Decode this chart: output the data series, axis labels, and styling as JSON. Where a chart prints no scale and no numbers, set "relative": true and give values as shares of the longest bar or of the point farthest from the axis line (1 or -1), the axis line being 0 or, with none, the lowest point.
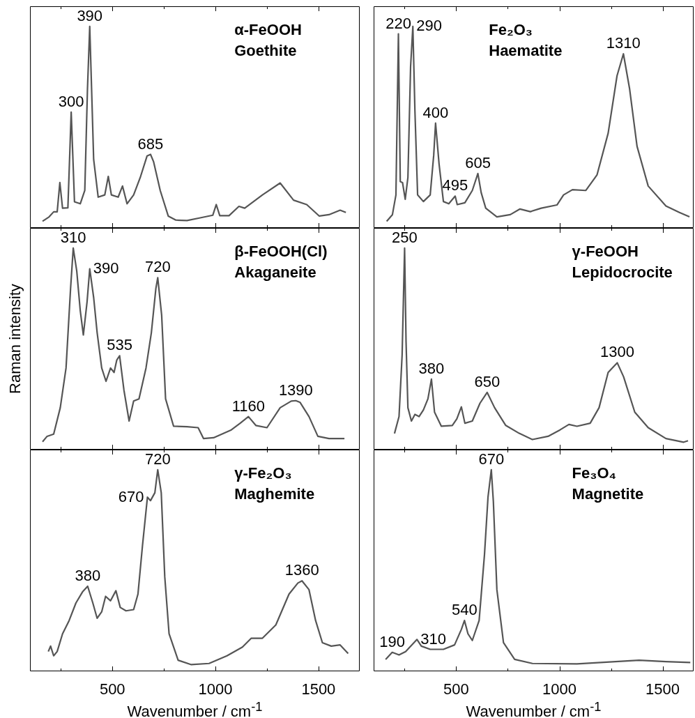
{
  "chart_data": [
    {
      "type": "line",
      "relative": true,
      "title": "α-FeOOH",
      "subtitle": "Goethite",
      "color": "#555555",
      "marker": "none",
      "xlim": [
        100,
        1700
      ],
      "xticks": [
        {
          "value": 250,
          "label": null
        },
        500,
        {
          "value": 750,
          "label": null
        },
        1000,
        {
          "value": 1250,
          "label": null
        },
        1500
      ],
      "tick_labels": false,
      "x": [
        161,
        193,
        215,
        232,
        245,
        258,
        284,
        300,
        316,
        344,
        366,
        379,
        390,
        399,
        409,
        431,
        463,
        480,
        495,
        528,
        549,
        571,
        603,
        635,
        668,
        685,
        700,
        732,
        771,
        808,
        862,
        926,
        987,
        1004,
        1021,
        1066,
        1114,
        1142,
        1228,
        1314,
        1379,
        1443,
        1504,
        1551,
        1605,
        1633
      ],
      "values": [
        0.033,
        0.055,
        0.08,
        0.08,
        0.225,
        0.098,
        0.1,
        0.575,
        0.13,
        0.12,
        0.186,
        0.69,
        1,
        0.69,
        0.34,
        0.153,
        0.164,
        0.256,
        0.164,
        0.153,
        0.208,
        0.12,
        0.164,
        0.25,
        0.357,
        0.365,
        0.328,
        0.186,
        0.059,
        0.039,
        0.037,
        0.05,
        0.063,
        0.116,
        0.061,
        0.061,
        0.107,
        0.098,
        0.164,
        0.223,
        0.138,
        0.116,
        0.059,
        0.066,
        0.088,
        0.077
      ],
      "annotations": [
        {
          "text": "300",
          "x": 300,
          "y": 0.575
        },
        {
          "text": "390",
          "x": 390,
          "y": 1
        },
        {
          "text": "685",
          "x": 685,
          "y": 0.365
        }
      ]
    },
    {
      "type": "line",
      "relative": true,
      "title": "Fe₂O₃",
      "subtitle": "Haematite",
      "color": "#555555",
      "marker": "none",
      "xlim": [
        100,
        1650
      ],
      "xticks": [
        {
          "value": 250,
          "label": null
        },
        500,
        {
          "value": 750,
          "label": null
        },
        1000,
        {
          "value": 1250,
          "label": null
        },
        1500
      ],
      "tick_labels": false,
      "x": [
        163,
        191,
        208,
        220,
        229,
        240,
        253,
        266,
        279,
        290,
        300,
        313,
        341,
        374,
        391,
        400,
        417,
        438,
        464,
        495,
        505,
        542,
        578,
        605,
        621,
        643,
        697,
        762,
        809,
        859,
        912,
        988,
        1020,
        1063,
        1128,
        1182,
        1236,
        1279,
        1310,
        1340,
        1376,
        1430,
        1516,
        1581,
        1630
      ],
      "values": [
        0.033,
        0.066,
        0.164,
        0.963,
        0.23,
        0.225,
        0.142,
        0.25,
        0.8,
        1,
        0.58,
        0.164,
        0.131,
        0.164,
        0.361,
        0.52,
        0.317,
        0.131,
        0.12,
        0.158,
        0.116,
        0.125,
        0.186,
        0.27,
        0.175,
        0.098,
        0.055,
        0.066,
        0.094,
        0.081,
        0.098,
        0.114,
        0.164,
        0.19,
        0.186,
        0.263,
        0.47,
        0.755,
        0.864,
        0.69,
        0.405,
        0.208,
        0.109,
        0.077,
        0.055
      ],
      "annotations": [
        {
          "text": "220",
          "x": 220,
          "y": 0.963
        },
        {
          "text": "290",
          "x": 290,
          "y": 1
        },
        {
          "text": "400",
          "x": 400,
          "y": 0.52
        },
        {
          "text": "495",
          "x": 495,
          "y": 0.158
        },
        {
          "text": "605",
          "x": 605,
          "y": 0.27
        },
        {
          "text": "1310",
          "x": 1310,
          "y": 0.864
        }
      ]
    },
    {
      "type": "line",
      "relative": true,
      "title": "β-FeOOH(Cl)",
      "subtitle": "Akaganeite",
      "ylabel": "Raman intensity",
      "color": "#555555",
      "marker": "none",
      "xlim": [
        100,
        1700
      ],
      "xticks": [
        {
          "value": 250,
          "label": null
        },
        500,
        {
          "value": 750,
          "label": null
        },
        1000,
        {
          "value": 1250,
          "label": null
        },
        1500
      ],
      "tick_labels": false,
      "x": [
        161,
        183,
        215,
        247,
        275,
        297,
        310,
        327,
        344,
        359,
        377,
        390,
        409,
        426,
        448,
        469,
        491,
        508,
        521,
        535,
        556,
        581,
        603,
        629,
        663,
        689,
        711,
        720,
        739,
        758,
        797,
        862,
        916,
        942,
        991,
        1077,
        1120,
        1160,
        1196,
        1250,
        1314,
        1368,
        1390,
        1411,
        1454,
        1497,
        1551,
        1626
      ],
      "values": [
        0.039,
        0.066,
        0.077,
        0.208,
        0.405,
        0.8,
        1,
        0.886,
        0.69,
        0.569,
        0.733,
        0.897,
        0.755,
        0.58,
        0.405,
        0.339,
        0.405,
        0.383,
        0.444,
        0.466,
        0.295,
        0.142,
        0.241,
        0.252,
        0.405,
        0.58,
        0.8,
        0.853,
        0.667,
        0.252,
        0.116,
        0.114,
        0.109,
        0.055,
        0.059,
        0.098,
        0.131,
        0.164,
        0.12,
        0.109,
        0.208,
        0.241,
        0.243,
        0.234,
        0.164,
        0.066,
        0.055,
        0.055
      ],
      "annotations": [
        {
          "text": "310",
          "x": 310,
          "y": 1
        },
        {
          "text": "390",
          "x": 390,
          "y": 0.897
        },
        {
          "text": "535",
          "x": 535,
          "y": 0.466
        },
        {
          "text": "720",
          "x": 720,
          "y": 0.853
        },
        {
          "text": "1160",
          "x": 1160,
          "y": 0.164
        },
        {
          "text": "1390",
          "x": 1390,
          "y": 0.243
        }
      ]
    },
    {
      "type": "line",
      "relative": true,
      "title": "γ-FeOOH",
      "subtitle": "Lepidocrocite",
      "color": "#555555",
      "marker": "none",
      "xlim": [
        100,
        1650
      ],
      "xticks": [
        {
          "value": 250,
          "label": null
        },
        500,
        {
          "value": 750,
          "label": null
        },
        1000,
        {
          "value": 1250,
          "label": null
        },
        1500
      ],
      "tick_labels": false,
      "x": [
        201,
        223,
        238,
        250,
        257,
        266,
        283,
        300,
        320,
        341,
        363,
        380,
        395,
        428,
        481,
        503,
        525,
        542,
        578,
        615,
        650,
        686,
        740,
        805,
        869,
        945,
        1003,
        1046,
        1085,
        1149,
        1192,
        1236,
        1280,
        1311,
        1365,
        1430,
        1516,
        1602,
        1623
      ],
      "values": [
        0.08,
        0.164,
        0.47,
        1,
        0.536,
        0.208,
        0.142,
        0.175,
        0.164,
        0.197,
        0.252,
        0.35,
        0.186,
        0.116,
        0.12,
        0.153,
        0.212,
        0.131,
        0.142,
        0.23,
        0.284,
        0.208,
        0.12,
        0.081,
        0.05,
        0.066,
        0.098,
        0.125,
        0.116,
        0.131,
        0.208,
        0.383,
        0.431,
        0.361,
        0.186,
        0.109,
        0.055,
        0.037,
        0.044
      ],
      "annotations": [
        {
          "text": "250",
          "x": 250,
          "y": 1
        },
        {
          "text": "380",
          "x": 380,
          "y": 0.35
        },
        {
          "text": "650",
          "x": 650,
          "y": 0.284
        },
        {
          "text": "1300",
          "x": 1280,
          "y": 0.431
        }
      ]
    },
    {
      "type": "line",
      "relative": true,
      "title": "γ-Fe₂O₃",
      "subtitle": "Maghemite",
      "xlabel": "Wavenumber / cm$^{-1}$",
      "color": "#555555",
      "marker": "none",
      "xlim": [
        100,
        1700
      ],
      "xticks": [
        {
          "value": 250,
          "label": null
        },
        500,
        {
          "value": 750,
          "label": null
        },
        1000,
        {
          "value": 1250,
          "label": null
        },
        1500
      ],
      "tick_labels": "x",
      "x": [
        189,
        200,
        215,
        232,
        258,
        290,
        323,
        355,
        380,
        405,
        426,
        448,
        467,
        491,
        517,
        538,
        566,
        603,
        624,
        646,
        670,
        685,
        706,
        720,
        737,
        754,
        775,
        819,
        883,
        969,
        1056,
        1131,
        1174,
        1228,
        1293,
        1357,
        1400,
        1420,
        1454,
        1486,
        1519,
        1562,
        1605,
        1644
      ],
      "values": [
        0.098,
        0.125,
        0.077,
        0.098,
        0.186,
        0.252,
        0.339,
        0.394,
        0.422,
        0.339,
        0.263,
        0.295,
        0.372,
        0.35,
        0.4,
        0.317,
        0.3,
        0.306,
        0.383,
        0.624,
        0.864,
        0.847,
        0.886,
        1,
        0.886,
        0.47,
        0.186,
        0.055,
        0.033,
        0.039,
        0.077,
        0.12,
        0.164,
        0.164,
        0.23,
        0.383,
        0.438,
        0.449,
        0.405,
        0.252,
        0.142,
        0.125,
        0.131,
        0.088
      ],
      "annotations": [
        {
          "text": "380",
          "x": 380,
          "y": 0.422
        },
        {
          "text": "670",
          "x": 670,
          "y": 0.864
        },
        {
          "text": "720",
          "x": 720,
          "y": 1
        },
        {
          "text": "1360",
          "x": 1420,
          "y": 0.449
        }
      ]
    },
    {
      "type": "line",
      "relative": true,
      "title": "Fe₃O₄",
      "subtitle": "Magnetite",
      "xlabel": "Wavenumber / cm$^{-1}$",
      "color": "#555555",
      "marker": "none",
      "xlim": [
        100,
        1650
      ],
      "xticks": [
        {
          "value": 250,
          "label": null
        },
        500,
        {
          "value": 750,
          "label": null
        },
        1000,
        {
          "value": 1250,
          "label": null
        },
        1500
      ],
      "tick_labels": "x",
      "x": [
        158,
        190,
        223,
        255,
        310,
        331,
        374,
        438,
        492,
        525,
        540,
        557,
        578,
        611,
        637,
        654,
        670,
        680,
        697,
        729,
        783,
        869,
        1085,
        1300,
        1386,
        1516,
        1634
      ],
      "values": [
        0.059,
        0.094,
        0.081,
        0.098,
        0.158,
        0.125,
        0.109,
        0.109,
        0.131,
        0.208,
        0.252,
        0.186,
        0.153,
        0.252,
        0.58,
        0.864,
        1,
        0.842,
        0.405,
        0.142,
        0.059,
        0.039,
        0.037,
        0.05,
        0.055,
        0.048,
        0.044
      ],
      "annotations": [
        {
          "text": "190",
          "x": 190,
          "y": 0.094
        },
        {
          "text": "310",
          "x": 310,
          "y": 0.158
        },
        {
          "text": "540",
          "x": 540,
          "y": 0.252
        },
        {
          "text": "670",
          "x": 670,
          "y": 1
        }
      ]
    }
  ]
}
